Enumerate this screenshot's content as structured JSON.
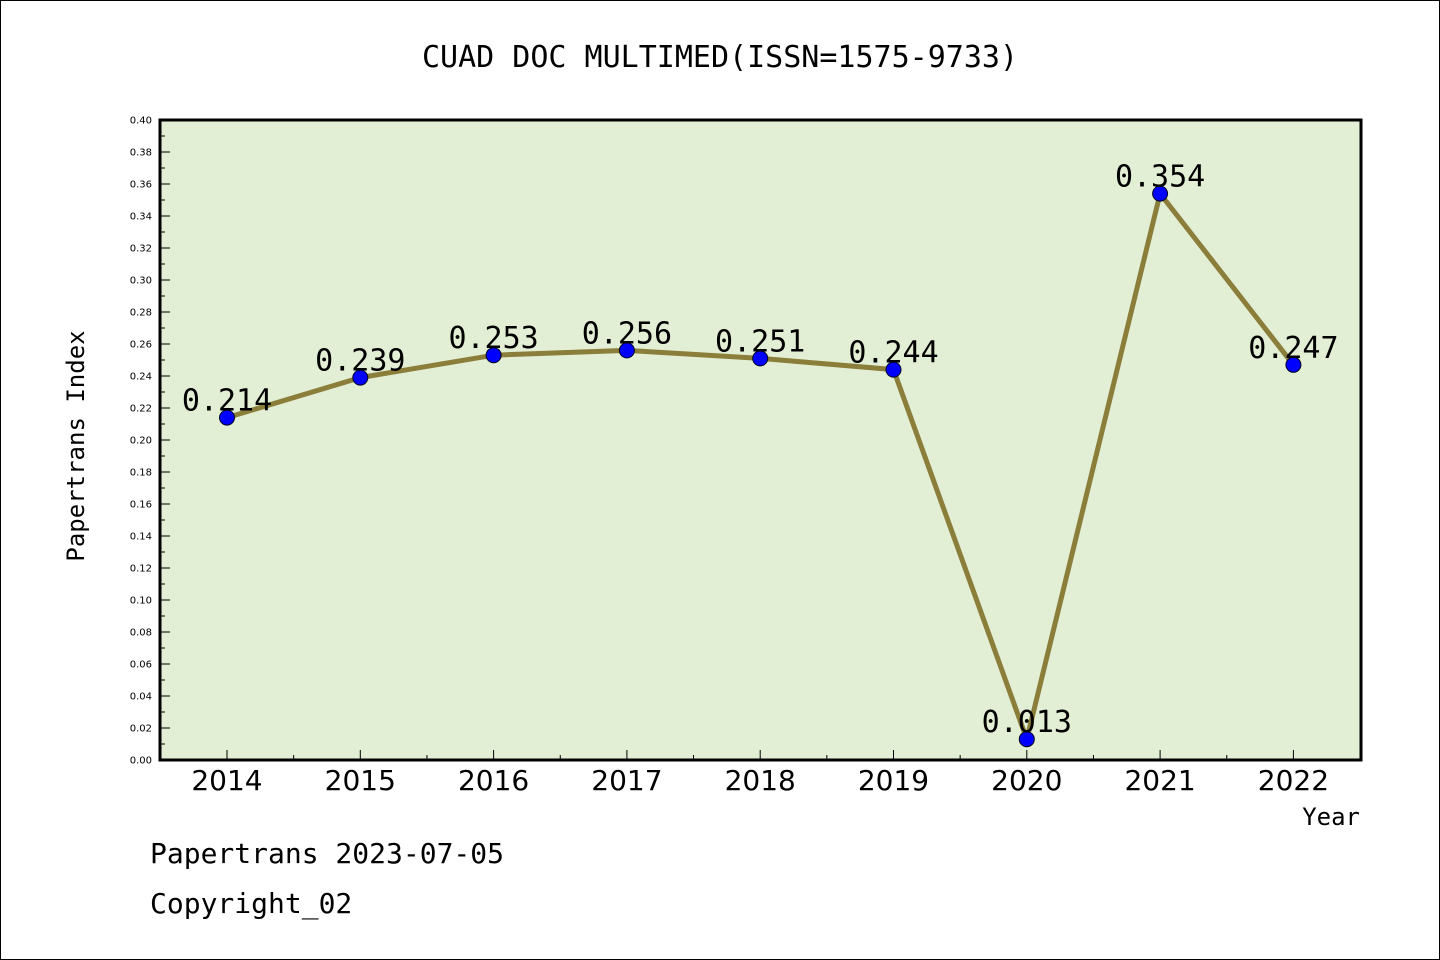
{
  "chart_data": {
    "type": "line",
    "title": "CUAD DOC MULTIMED(ISSN=1575-9733)",
    "xlabel": "Year",
    "ylabel": "Papertrans Index",
    "ylim": [
      0,
      0.4
    ],
    "ytick_step": 0.02,
    "grid": false,
    "categories": [
      "2014",
      "2015",
      "2016",
      "2017",
      "2018",
      "2019",
      "2020",
      "2021",
      "2022"
    ],
    "values": [
      0.214,
      0.239,
      0.253,
      0.256,
      0.251,
      0.244,
      0.013,
      0.354,
      0.247
    ],
    "value_labels": [
      "0.214",
      "0.239",
      "0.253",
      "0.256",
      "0.251",
      "0.244",
      "0.013",
      "0.354",
      "0.247"
    ],
    "colors": {
      "plot_background": "#e2efd5",
      "line": "#8b7d3a",
      "marker": "#0000ff"
    }
  },
  "footer": {
    "date_line": "Papertrans 2023-07-05",
    "copyright": "Copyright_02"
  }
}
